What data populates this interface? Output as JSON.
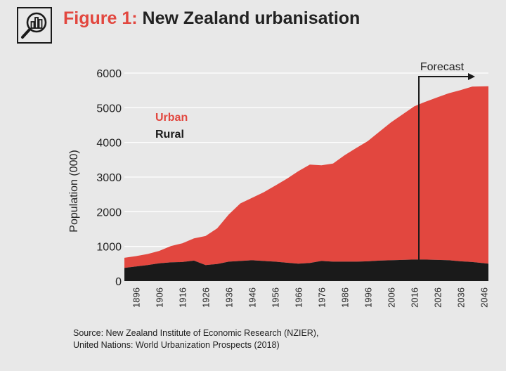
{
  "header": {
    "figure_label": "Figure 1:",
    "title": "New Zealand urbanisation",
    "icon": "magnifier-chart-icon"
  },
  "source": {
    "line1": "Source: New Zealand Institute of Economic Research (NZIER),",
    "line2": "United Nations: World Urbanization Prospects (2018)"
  },
  "colors": {
    "urban": "#e2473f",
    "rural": "#1a1a1a",
    "background": "#e8e8e8",
    "grid": "#ffffff"
  },
  "chart_data": {
    "type": "area",
    "stacked": true,
    "title": "New Zealand urbanisation",
    "ylabel": "Population (000)",
    "xlabel": "",
    "ylim": [
      0,
      6000
    ],
    "xlim": [
      1891,
      2048
    ],
    "yticks": [
      0,
      1000,
      2000,
      3000,
      4000,
      5000,
      6000
    ],
    "xtick_labels": [
      "1896",
      "1906",
      "1916",
      "1926",
      "1936",
      "1946",
      "1956",
      "1966",
      "1976",
      "1986",
      "1996",
      "2006",
      "2016",
      "2026",
      "2036",
      "2046"
    ],
    "grid": true,
    "legend_position": "upper-left",
    "x": [
      1891,
      1896,
      1901,
      1906,
      1911,
      1916,
      1921,
      1926,
      1931,
      1936,
      1941,
      1946,
      1951,
      1956,
      1961,
      1966,
      1971,
      1976,
      1981,
      1986,
      1991,
      1996,
      2001,
      2006,
      2011,
      2016,
      2020,
      2026,
      2031,
      2036,
      2041,
      2048
    ],
    "series": [
      {
        "name": "Rural",
        "color": "#1a1a1a",
        "values": [
          380,
          420,
          460,
          510,
          540,
          550,
          590,
          460,
          490,
          560,
          580,
          600,
          580,
          560,
          530,
          500,
          520,
          580,
          560,
          560,
          560,
          570,
          590,
          600,
          610,
          620,
          620,
          610,
          600,
          570,
          550,
          500
        ]
      },
      {
        "name": "Urban",
        "color": "#e2473f",
        "values": [
          290,
          300,
          320,
          360,
          470,
          540,
          640,
          840,
          1030,
          1360,
          1660,
          1800,
          1980,
          2190,
          2420,
          2670,
          2840,
          2760,
          2830,
          3070,
          3280,
          3470,
          3720,
          3980,
          4200,
          4420,
          4530,
          4690,
          4820,
          4940,
          5060,
          5120
        ]
      }
    ],
    "annotations": [
      {
        "text": "Forecast",
        "x": 2018,
        "style": "vertical-line-with-arrow"
      }
    ]
  }
}
